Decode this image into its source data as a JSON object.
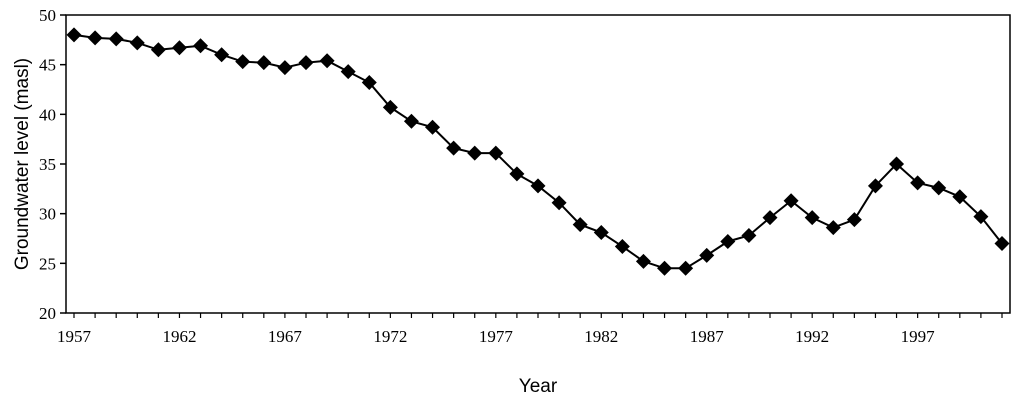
{
  "chart_data": {
    "type": "line",
    "title": "",
    "xlabel": "Year",
    "ylabel": "Groundwater level (masl)",
    "ylim": [
      20,
      50
    ],
    "xlim": [
      1957,
      2001
    ],
    "yticks": [
      20,
      25,
      30,
      35,
      40,
      45,
      50
    ],
    "xticks": [
      1957,
      1962,
      1967,
      1972,
      1977,
      1982,
      1987,
      1992,
      1997
    ],
    "grid": false,
    "marker": "diamond",
    "series": [
      {
        "x": [
          1957,
          1958,
          1959,
          1960,
          1961,
          1962,
          1963,
          1964,
          1965,
          1966,
          1967,
          1968,
          1969,
          1970,
          1971,
          1972,
          1973,
          1974,
          1975,
          1976,
          1977,
          1978,
          1979,
          1980,
          1981,
          1982,
          1983,
          1984,
          1985,
          1986,
          1987,
          1988,
          1989,
          1990,
          1991,
          1992,
          1993,
          1994,
          1995,
          1996,
          1997,
          1998,
          1999,
          2000,
          2001
        ],
        "y": [
          48.0,
          47.7,
          47.6,
          47.2,
          46.5,
          46.7,
          46.9,
          46.0,
          45.3,
          45.2,
          44.7,
          45.2,
          45.4,
          44.3,
          43.2,
          40.7,
          39.3,
          38.7,
          36.6,
          36.1,
          36.1,
          34.0,
          32.8,
          31.1,
          28.9,
          28.1,
          26.7,
          25.2,
          24.5,
          24.5,
          25.8,
          27.2,
          27.8,
          29.6,
          31.3,
          29.6,
          28.6,
          29.4,
          32.8,
          35.0,
          33.1,
          32.6,
          31.7,
          29.7,
          27.0
        ],
        "color": "#000000"
      }
    ]
  }
}
